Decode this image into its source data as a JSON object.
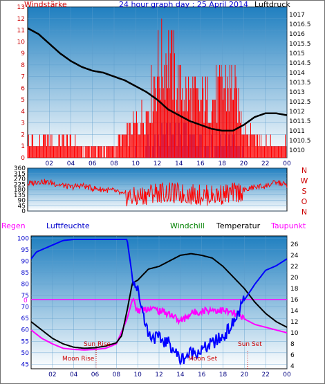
{
  "header": {
    "title": "24 hour graph day : 25 April 2014",
    "left_label": "Windstärke",
    "right_label": "Luftdruck"
  },
  "bottom_header": {
    "rain": "Regen",
    "humidity": "Luftfeuchte",
    "windchill": "Windchill",
    "temperature": "Temperatur",
    "dewpoint": "Taupunkt"
  },
  "colors": {
    "wind": "#ff0000",
    "gust": "#0000ff",
    "pressure": "#000000",
    "humidity": "#0000ff",
    "temperature": "#000000",
    "dewpoint": "#ff00ff",
    "windchill": "#008000",
    "axis_red": "#cc0000",
    "axis_blue": "#0000cc",
    "sky_top": "#1f7fc0",
    "sky_bottom": "#ffffff"
  },
  "chart_data": [
    {
      "type": "bar",
      "name": "wind-pressure",
      "x_ticks": [
        "02",
        "04",
        "06",
        "08",
        "10",
        "12",
        "14",
        "16",
        "18",
        "20",
        "22",
        "00"
      ],
      "left_axis": {
        "label": "Windstärke",
        "min": 0,
        "max": 13,
        "ticks": [
          0,
          1,
          2,
          3,
          4,
          5,
          6,
          7,
          8,
          9,
          10,
          11,
          12,
          13
        ]
      },
      "right_axis": {
        "label": "Luftdruck",
        "min": 1009.6,
        "max": 1017.4,
        "ticks": [
          1010,
          1010.5,
          1011,
          1011.5,
          1012,
          1012.5,
          1013,
          1013.5,
          1014,
          1014.5,
          1015,
          1015.5,
          1016,
          1016.5,
          1017
        ]
      },
      "pressure": {
        "hours": [
          0,
          1,
          2,
          3,
          4,
          5,
          6,
          7,
          8,
          9,
          10,
          11,
          12,
          13,
          14,
          15,
          16,
          17,
          18,
          19,
          20,
          21,
          22,
          23,
          24
        ],
        "values": [
          1016.3,
          1016.0,
          1015.5,
          1015.0,
          1014.6,
          1014.3,
          1014.1,
          1014.0,
          1013.8,
          1013.6,
          1013.3,
          1013.0,
          1012.6,
          1012.1,
          1011.8,
          1011.5,
          1011.3,
          1011.1,
          1011.0,
          1011.0,
          1011.3,
          1011.7,
          1011.9,
          1011.9,
          1011.8
        ]
      },
      "wind_speed_max": {
        "hours": [
          0,
          1,
          2,
          3,
          4,
          5,
          6,
          7,
          8,
          9,
          10,
          11,
          12,
          13,
          14,
          15,
          16,
          17,
          18,
          19,
          20,
          21,
          22,
          23,
          24
        ],
        "values": [
          2,
          2,
          2,
          2,
          2,
          1,
          1,
          1,
          1,
          3,
          4,
          6,
          11,
          13,
          9,
          8,
          7,
          7,
          9,
          9,
          4,
          3,
          2,
          1,
          2
        ]
      },
      "wind_gust_max": {
        "hours": [
          0,
          1,
          2,
          3,
          4,
          5,
          6,
          7,
          8,
          9,
          10,
          11,
          12,
          13,
          14,
          15,
          16,
          17,
          18,
          19,
          20,
          21,
          22,
          23,
          24
        ],
        "values": [
          0,
          0,
          0,
          0,
          0,
          0,
          0,
          0,
          0,
          0,
          1,
          2,
          3,
          4,
          3,
          3,
          2,
          2,
          2,
          3,
          1,
          0,
          0,
          0,
          0
        ]
      }
    },
    {
      "type": "line",
      "name": "wind-direction",
      "left_axis": {
        "min": 0,
        "max": 360,
        "ticks": [
          0,
          45,
          90,
          135,
          180,
          225,
          270,
          315,
          360
        ]
      },
      "right_labels": [
        "N",
        "W",
        "S",
        "O",
        "N"
      ],
      "series": [
        {
          "hours": [
            0,
            1,
            2,
            3,
            4,
            5,
            6,
            7,
            8,
            9,
            10,
            11,
            12,
            13,
            14,
            15,
            16,
            17,
            18,
            19,
            20,
            21,
            22,
            23,
            24
          ],
          "values": [
            225,
            250,
            240,
            220,
            200,
            215,
            190,
            180,
            170,
            130,
            110,
            140,
            160,
            150,
            145,
            140,
            135,
            130,
            140,
            150,
            170,
            200,
            210,
            240,
            220
          ]
        }
      ]
    },
    {
      "type": "line",
      "name": "climate",
      "x_ticks": [
        "02",
        "04",
        "06",
        "08",
        "10",
        "12",
        "14",
        "16",
        "18",
        "20",
        "22",
        "00"
      ],
      "left_axis": {
        "label": "Luftfeuchte",
        "min": 43,
        "max": 101,
        "ticks": [
          45,
          50,
          55,
          60,
          65,
          70,
          75,
          80,
          85,
          90,
          95,
          100
        ]
      },
      "right_axis": {
        "min": 3.5,
        "max": 27.5,
        "ticks": [
          4,
          6,
          8,
          10,
          12,
          14,
          16,
          18,
          20,
          22,
          24,
          26
        ]
      },
      "rain_label": "0",
      "annotations": [
        "Sun Rise",
        "Sun Set",
        "Moon Rise",
        "Moon Set"
      ],
      "series": [
        {
          "name": "Luftfeuchte",
          "axis": "left",
          "hours": [
            0,
            0.5,
            1,
            2,
            3,
            4,
            5,
            6,
            7,
            8,
            9,
            9.5,
            10,
            10.5,
            11,
            12,
            13,
            14,
            15,
            16,
            17,
            18,
            19,
            20,
            21,
            22,
            23,
            24
          ],
          "values": [
            91,
            94,
            95,
            97,
            99,
            99.5,
            99.5,
            99.5,
            99.5,
            99.5,
            99.5,
            83,
            77,
            68,
            58,
            56,
            54,
            47,
            50,
            51,
            54,
            57,
            63,
            73,
            80,
            86,
            88,
            91
          ]
        },
        {
          "name": "Temperatur",
          "axis": "right",
          "hours": [
            0,
            1,
            2,
            3,
            4,
            5,
            6,
            7,
            8,
            8.5,
            9,
            9.5,
            10,
            11,
            12,
            13,
            14,
            15,
            16,
            17,
            18,
            19,
            20,
            21,
            22,
            23,
            24
          ],
          "values": [
            12,
            10.5,
            9,
            8,
            7.4,
            7.2,
            7.3,
            7.6,
            8.2,
            9.5,
            14,
            19,
            19.5,
            21.5,
            22,
            23,
            24,
            24.3,
            24,
            23.5,
            22,
            20,
            18,
            15.5,
            13.5,
            12,
            11
          ]
        },
        {
          "name": "Taupunkt",
          "axis": "right",
          "hours": [
            0,
            1,
            2,
            3,
            4,
            5,
            6,
            7,
            8,
            9,
            9.5,
            10,
            11,
            12,
            13,
            14,
            15,
            16,
            17,
            18,
            19,
            20,
            21,
            22,
            23,
            24
          ],
          "values": [
            10.5,
            9,
            8,
            7.2,
            7,
            6.9,
            7,
            7.2,
            8,
            12.5,
            16,
            14,
            14.5,
            14,
            13.5,
            12,
            13.5,
            14,
            14.2,
            14,
            13.5,
            12.5,
            11.5,
            11,
            10.5,
            10
          ]
        }
      ]
    }
  ]
}
